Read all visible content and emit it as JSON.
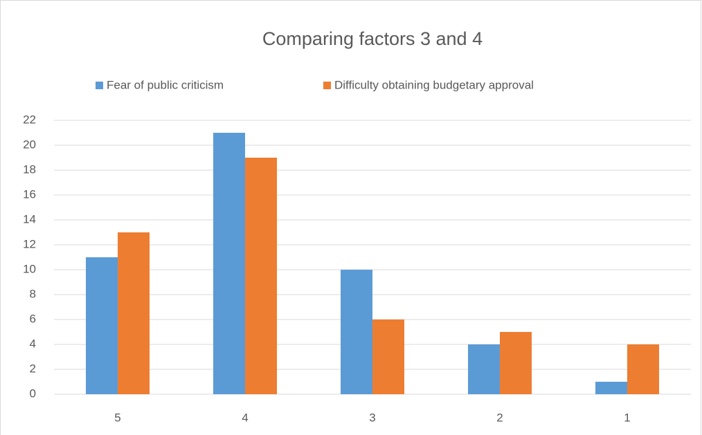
{
  "chart_data": {
    "type": "bar",
    "title": "Comparing factors 3 and 4",
    "categories": [
      "5",
      "4",
      "3",
      "2",
      "1"
    ],
    "series": [
      {
        "name": "Fear of public criticism",
        "color": "#5b9bd5",
        "values": [
          11,
          21,
          10,
          4,
          1
        ]
      },
      {
        "name": "Difficulty obtaining budgetary approval",
        "color": "#ed7d31",
        "values": [
          13,
          19,
          6,
          5,
          4
        ]
      }
    ],
    "ylim": [
      0,
      22
    ],
    "yticks": [
      0,
      2,
      4,
      6,
      8,
      10,
      12,
      14,
      16,
      18,
      20,
      22
    ],
    "grid": true,
    "legend": "top"
  }
}
